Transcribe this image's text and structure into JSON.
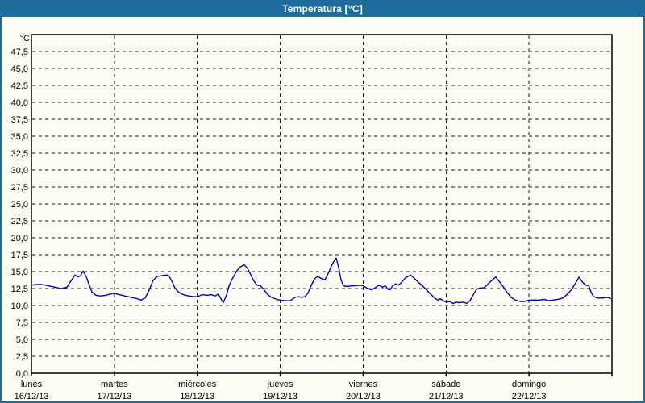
{
  "window": {
    "title": "Temperatura [°C]"
  },
  "colors": {
    "title_bar": "#1e6b9e",
    "title_text": "#ffffff",
    "window_border": "#1e6b9e",
    "background": "#fdfdf6",
    "plot_background": "#fdfdf8",
    "frame": "#000000",
    "grid": "#1a1a1a",
    "line": "#0000b4",
    "text": "#000000"
  },
  "chart_data": {
    "type": "line",
    "title": "Temperatura [°C]",
    "grid": "dashed",
    "legend": "none",
    "y_axis": {
      "unit": "°C",
      "min": 0,
      "max": 50,
      "tick_step": 2.5,
      "first_label": 0.0,
      "last_label": 47.5,
      "decimal_separator": ","
    },
    "x_axis": {
      "hours_total": 168,
      "days": [
        {
          "name": "lunes",
          "date": "16/12/13"
        },
        {
          "name": "martes",
          "date": "17/12/13"
        },
        {
          "name": "miércoles",
          "date": "18/12/13"
        },
        {
          "name": "jueves",
          "date": "19/12/13"
        },
        {
          "name": "viernes",
          "date": "20/12/13"
        },
        {
          "name": "sábado",
          "date": "21/12/13"
        },
        {
          "name": "domingo",
          "date": "22/12/13"
        }
      ]
    },
    "series": [
      {
        "name": "Temperatura",
        "color": "#0000b4",
        "points_hour_temp": [
          [
            0,
            13.0
          ],
          [
            1.4,
            13.1
          ],
          [
            3,
            13.1
          ],
          [
            4.9,
            12.9
          ],
          [
            6.8,
            12.7
          ],
          [
            8.6,
            12.5
          ],
          [
            10.3,
            12.7
          ],
          [
            11.4,
            13.6
          ],
          [
            12.6,
            14.5
          ],
          [
            13.5,
            14.2
          ],
          [
            14.2,
            14.4
          ],
          [
            14.9,
            15.1
          ],
          [
            15.9,
            14.2
          ],
          [
            16.6,
            13.2
          ],
          [
            17.5,
            12.0
          ],
          [
            18.7,
            11.5
          ],
          [
            20,
            11.4
          ],
          [
            21.5,
            11.5
          ],
          [
            22.9,
            11.7
          ],
          [
            24,
            11.8
          ],
          [
            25.4,
            11.6
          ],
          [
            27,
            11.4
          ],
          [
            28.9,
            11.2
          ],
          [
            30.6,
            11.0
          ],
          [
            31.7,
            10.8
          ],
          [
            32.9,
            11.1
          ],
          [
            34.1,
            12.3
          ],
          [
            35.2,
            13.7
          ],
          [
            36.4,
            14.3
          ],
          [
            37.8,
            14.4
          ],
          [
            39.2,
            14.5
          ],
          [
            40.1,
            14.1
          ],
          [
            40.8,
            13.4
          ],
          [
            41.5,
            12.6
          ],
          [
            42.5,
            12.0
          ],
          [
            43.9,
            11.6
          ],
          [
            45.5,
            11.4
          ],
          [
            47.1,
            11.3
          ],
          [
            48,
            11.3
          ],
          [
            49.5,
            11.6
          ],
          [
            50.9,
            11.5
          ],
          [
            52,
            11.6
          ],
          [
            53.2,
            11.4
          ],
          [
            54.1,
            11.7
          ],
          [
            54.8,
            11.0
          ],
          [
            55.5,
            10.4
          ],
          [
            56.5,
            11.6
          ],
          [
            57.2,
            12.9
          ],
          [
            58.1,
            13.9
          ],
          [
            59.3,
            15.0
          ],
          [
            60.4,
            15.7
          ],
          [
            61.6,
            16.0
          ],
          [
            62.5,
            15.5
          ],
          [
            63.5,
            14.5
          ],
          [
            64.4,
            13.6
          ],
          [
            65.3,
            13.0
          ],
          [
            66.3,
            12.9
          ],
          [
            67.2,
            12.4
          ],
          [
            68.4,
            11.6
          ],
          [
            69.5,
            11.2
          ],
          [
            70.9,
            10.9
          ],
          [
            72,
            10.8
          ],
          [
            73.5,
            10.7
          ],
          [
            74.9,
            10.7
          ],
          [
            76.3,
            11.2
          ],
          [
            77.2,
            11.3
          ],
          [
            78.2,
            11.2
          ],
          [
            79.1,
            11.3
          ],
          [
            80,
            11.8
          ],
          [
            81,
            13.0
          ],
          [
            81.9,
            13.9
          ],
          [
            82.8,
            14.3
          ],
          [
            83.5,
            14.1
          ],
          [
            84.2,
            13.9
          ],
          [
            84.9,
            13.8
          ],
          [
            85.6,
            14.4
          ],
          [
            86.6,
            15.6
          ],
          [
            87.5,
            16.5
          ],
          [
            88.2,
            17.0
          ],
          [
            88.9,
            15.6
          ],
          [
            89.6,
            13.8
          ],
          [
            90.3,
            12.9
          ],
          [
            91.5,
            12.8
          ],
          [
            92.6,
            12.9
          ],
          [
            93.8,
            12.9
          ],
          [
            95,
            13.0
          ],
          [
            96,
            12.9
          ],
          [
            97.3,
            12.5
          ],
          [
            98.5,
            12.3
          ],
          [
            99.4,
            12.6
          ],
          [
            100.6,
            13.0
          ],
          [
            101.5,
            12.7
          ],
          [
            102.4,
            12.9
          ],
          [
            103.1,
            12.4
          ],
          [
            103.8,
            12.3
          ],
          [
            104.5,
            12.9
          ],
          [
            105.5,
            13.2
          ],
          [
            106.2,
            13.0
          ],
          [
            107.1,
            13.4
          ],
          [
            108.3,
            14.1
          ],
          [
            109.7,
            14.5
          ],
          [
            110.8,
            14.0
          ],
          [
            112,
            13.4
          ],
          [
            113.2,
            12.9
          ],
          [
            114.3,
            12.3
          ],
          [
            115.5,
            11.7
          ],
          [
            116.7,
            11.1
          ],
          [
            117.6,
            10.8
          ],
          [
            118.3,
            11.0
          ],
          [
            119.2,
            10.7
          ],
          [
            120,
            10.5
          ],
          [
            121.1,
            10.6
          ],
          [
            122,
            10.3
          ],
          [
            122.9,
            10.5
          ],
          [
            123.9,
            10.4
          ],
          [
            125,
            10.5
          ],
          [
            126,
            10.3
          ],
          [
            126.9,
            10.7
          ],
          [
            127.9,
            11.6
          ],
          [
            128.8,
            12.4
          ],
          [
            130,
            12.6
          ],
          [
            130.9,
            12.6
          ],
          [
            131.8,
            13.0
          ],
          [
            133,
            13.6
          ],
          [
            134.4,
            14.2
          ],
          [
            135.3,
            13.6
          ],
          [
            136.5,
            12.8
          ],
          [
            137.7,
            11.9
          ],
          [
            138.8,
            11.2
          ],
          [
            140,
            10.8
          ],
          [
            141.4,
            10.6
          ],
          [
            142.8,
            10.6
          ],
          [
            144,
            10.8
          ],
          [
            145.6,
            10.8
          ],
          [
            147,
            10.8
          ],
          [
            148.4,
            10.9
          ],
          [
            149.6,
            10.7
          ],
          [
            151,
            10.8
          ],
          [
            152.4,
            10.9
          ],
          [
            153.8,
            11.1
          ],
          [
            155.2,
            11.7
          ],
          [
            156.4,
            12.4
          ],
          [
            157.6,
            13.4
          ],
          [
            158.5,
            14.2
          ],
          [
            159.4,
            13.5
          ],
          [
            160.4,
            13.0
          ],
          [
            161.3,
            12.9
          ],
          [
            162,
            11.9
          ],
          [
            162.7,
            11.3
          ],
          [
            163.9,
            11.1
          ],
          [
            165.3,
            11.1
          ],
          [
            166.7,
            11.2
          ],
          [
            167.6,
            11.0
          ]
        ]
      }
    ]
  }
}
